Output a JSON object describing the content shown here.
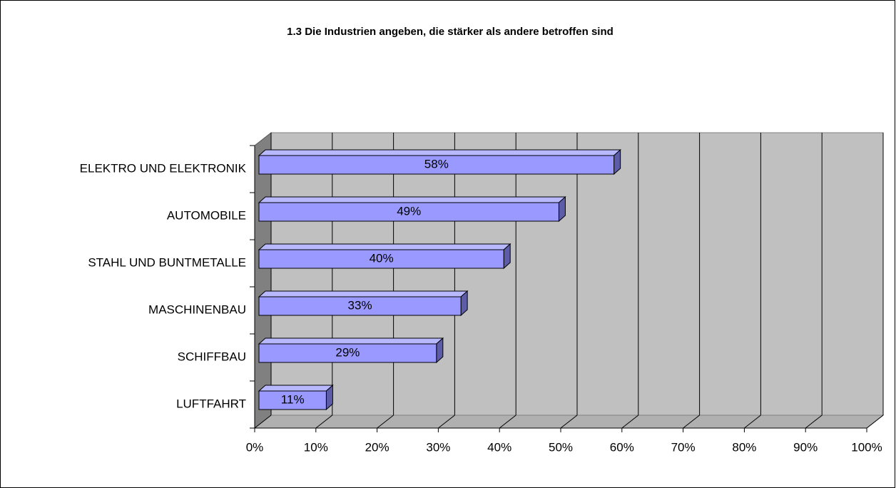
{
  "chart_data": {
    "type": "bar3d_horizontal",
    "title": "1.3 Die Industrien angeben, die stärker als andere betroffen sind",
    "categories": [
      "ELEKTRO UND ELEKTRONIK",
      "AUTOMOBILE",
      "STAHL UND BUNTMETALLE",
      "MASCHINENBAU",
      "SCHIFFBAU",
      "LUFTFAHRT"
    ],
    "values": [
      58,
      49,
      40,
      33,
      29,
      11
    ],
    "value_labels": [
      "58%",
      "49%",
      "40%",
      "33%",
      "29%",
      "11%"
    ],
    "color": "#9999ff",
    "xlim": [
      0,
      100
    ],
    "xticks": [
      {
        "value": 0,
        "label": "0%"
      },
      {
        "value": 10,
        "label": "10%"
      },
      {
        "value": 20,
        "label": "20%"
      },
      {
        "value": 30,
        "label": "30%"
      },
      {
        "value": 40,
        "label": "40%"
      },
      {
        "value": 50,
        "label": "50%"
      },
      {
        "value": 60,
        "label": "60%"
      },
      {
        "value": 70,
        "label": "70%"
      },
      {
        "value": 80,
        "label": "80%"
      },
      {
        "value": 90,
        "label": "90%"
      },
      {
        "value": 100,
        "label": "100%"
      }
    ],
    "grid": true
  }
}
